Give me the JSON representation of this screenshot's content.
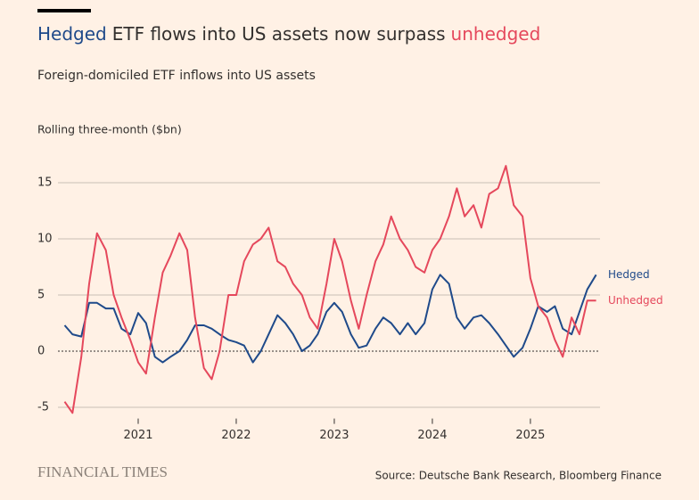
{
  "chart_data": {
    "type": "line",
    "title": [
      "Hedged",
      "ETF flows into US assets now surpass",
      "unhedged"
    ],
    "subtitle": "Foreign-domiciled ETF inflows into US assets",
    "y_label": "Rolling three-month ($bn)",
    "source": "Source: Deutsche Bank Research, Bloomberg Finance",
    "publisher": "FINANCIAL TIMES",
    "x": [
      2020.25,
      2020.33,
      2020.42,
      2020.5,
      2020.58,
      2020.67,
      2020.75,
      2020.83,
      2020.92,
      2021.0,
      2021.08,
      2021.17,
      2021.25,
      2021.33,
      2021.42,
      2021.5,
      2021.58,
      2021.67,
      2021.75,
      2021.83,
      2021.92,
      2022.0,
      2022.08,
      2022.17,
      2022.25,
      2022.33,
      2022.42,
      2022.5,
      2022.58,
      2022.67,
      2022.75,
      2022.83,
      2022.92,
      2023.0,
      2023.08,
      2023.17,
      2023.25,
      2023.33,
      2023.42,
      2023.5,
      2023.58,
      2023.67,
      2023.75,
      2023.83,
      2023.92,
      2024.0,
      2024.08,
      2024.17,
      2024.25,
      2024.33,
      2024.42,
      2024.5,
      2024.58,
      2024.67,
      2024.75,
      2024.83,
      2024.92,
      2025.0,
      2025.08,
      2025.17,
      2025.25,
      2025.33,
      2025.42,
      2025.5,
      2025.58,
      2025.67
    ],
    "series": [
      {
        "name": "Hedged",
        "color": "#1f4a8a",
        "values": [
          2.3,
          1.5,
          1.3,
          4.3,
          4.3,
          3.8,
          3.8,
          2.0,
          1.5,
          3.4,
          2.5,
          -0.5,
          -1.0,
          -0.5,
          0,
          1.0,
          2.3,
          2.3,
          2.0,
          1.5,
          1.0,
          0.8,
          0.5,
          -1.0,
          0,
          1.5,
          3.2,
          2.5,
          1.5,
          0,
          0.5,
          1.5,
          3.5,
          4.3,
          3.5,
          1.5,
          0.3,
          0.5,
          2.0,
          3.0,
          2.5,
          1.5,
          2.5,
          1.5,
          2.5,
          5.5,
          6.8,
          6.0,
          3.0,
          2.0,
          3.0,
          3.2,
          2.5,
          1.5,
          0.5,
          -0.5,
          0.3,
          2.0,
          4.0,
          3.5,
          4.0,
          2.0,
          1.5,
          3.5,
          5.5,
          6.8
        ]
      },
      {
        "name": "Unhedged",
        "color": "#e5485c",
        "values": [
          -4.5,
          -5.5,
          -0.5,
          6.0,
          10.5,
          9.0,
          5.0,
          3.0,
          1.0,
          -1.0,
          -2.0,
          3.0,
          7.0,
          8.5,
          10.5,
          9.0,
          3.0,
          -1.5,
          -2.5,
          0,
          5.0,
          5.0,
          8.0,
          9.5,
          10.0,
          11.0,
          8.0,
          7.5,
          6.0,
          5.0,
          3.0,
          2.0,
          6.0,
          10.0,
          8.0,
          4.5,
          2.0,
          5.0,
          8.0,
          9.5,
          12.0,
          10.0,
          9.0,
          7.5,
          7.0,
          9.0,
          10.0,
          12.0,
          14.5,
          12.0,
          13.0,
          11.0,
          14.0,
          14.5,
          16.5,
          13.0,
          12.0,
          6.5,
          4.0,
          3.0,
          1.0,
          -0.5,
          3.0,
          1.5,
          4.5,
          4.5
        ]
      }
    ],
    "xlim": [
      2020.2,
      2025.71
    ],
    "xticks": [
      2021,
      2022,
      2023,
      2024,
      2025
    ],
    "ylim": [
      -6,
      17.5
    ],
    "yticks": [
      -5,
      0,
      5,
      10,
      15
    ],
    "grid": true
  }
}
